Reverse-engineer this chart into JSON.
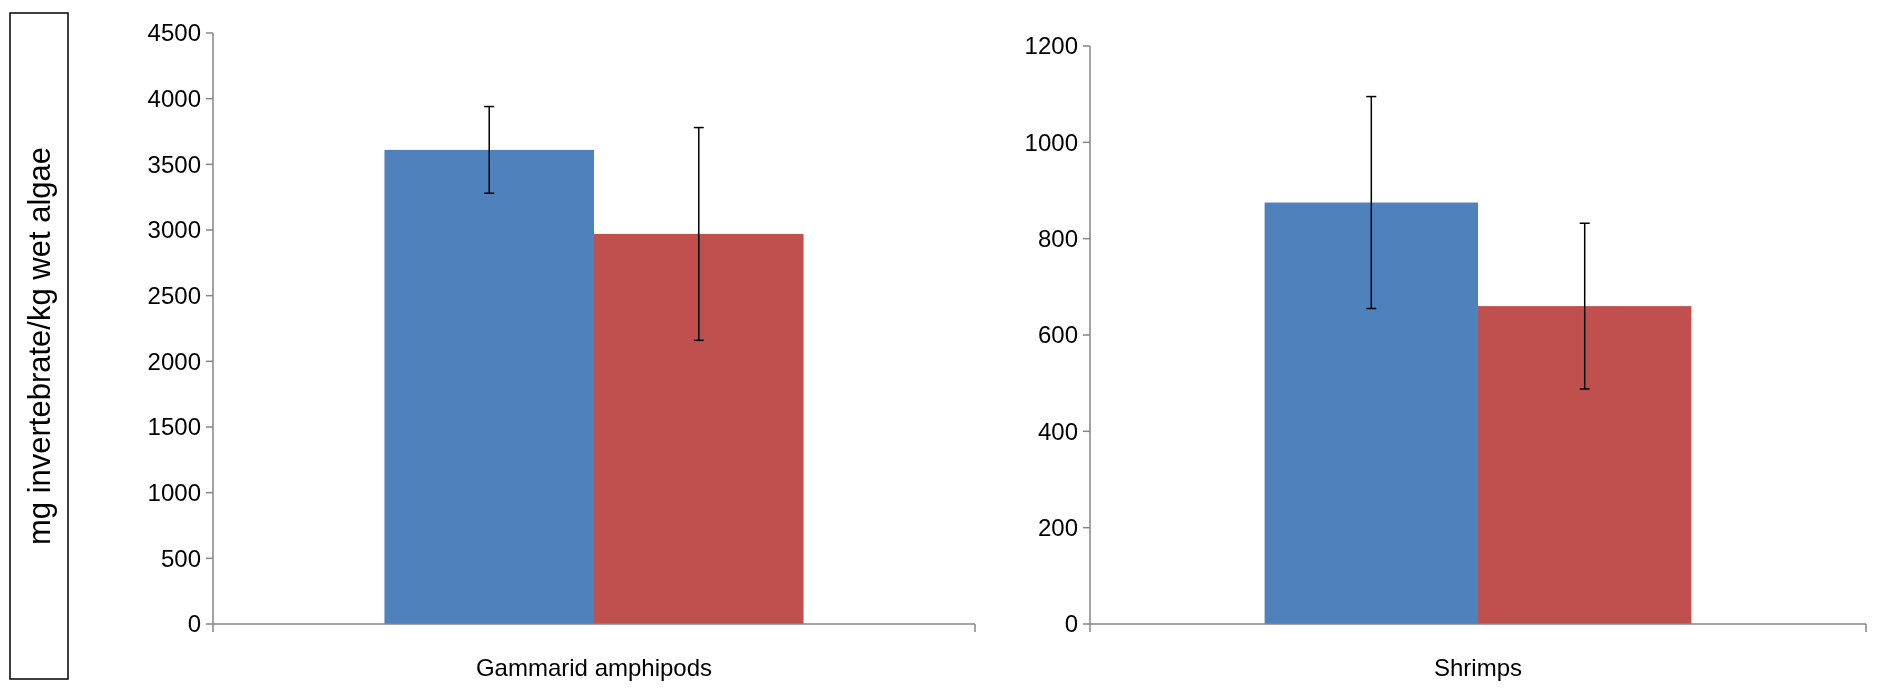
{
  "chart_data": [
    {
      "type": "bar",
      "ylabel": "mg invertebrate/kg wet algae",
      "categories": [
        "Gammarid amphipods"
      ],
      "series": [
        {
          "color": "#4f81bd",
          "values": [
            3610
          ],
          "errors": [
            330
          ]
        },
        {
          "color": "#c0504d",
          "values": [
            2970
          ],
          "errors": [
            810
          ]
        }
      ],
      "ylim": [
        0,
        4500
      ],
      "yticks": [
        0,
        500,
        1000,
        1500,
        2000,
        2500,
        3000,
        3500,
        4000,
        4500
      ],
      "grid": false
    },
    {
      "type": "bar",
      "categories": [
        "Shrimps"
      ],
      "series": [
        {
          "color": "#4f81bd",
          "values": [
            875
          ],
          "errors": [
            220
          ]
        },
        {
          "color": "#c0504d",
          "values": [
            660
          ],
          "errors": [
            172
          ]
        }
      ],
      "ylim": [
        0,
        1200
      ],
      "yticks": [
        0,
        200,
        400,
        600,
        800,
        1000,
        1200
      ],
      "grid": false
    }
  ]
}
